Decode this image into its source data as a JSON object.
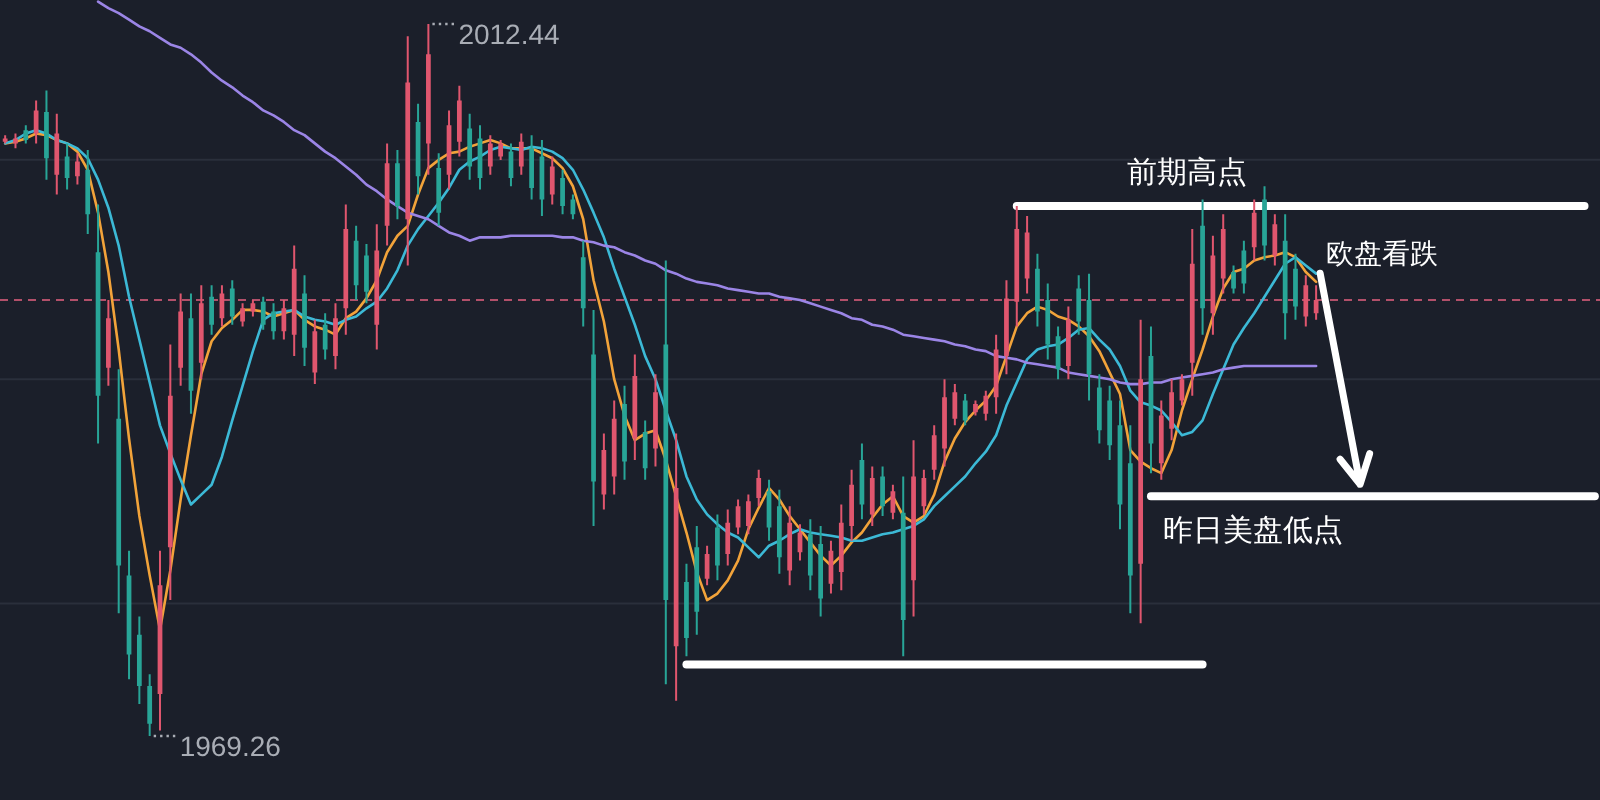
{
  "chart_data": {
    "type": "candlestick",
    "categories": [
      null,
      null,
      null,
      null,
      null,
      null,
      null,
      null,
      null,
      null,
      null,
      null,
      null,
      null,
      null,
      null,
      null,
      null,
      null,
      null,
      null,
      null,
      null,
      null,
      null,
      null,
      null,
      null,
      null,
      null,
      null,
      null,
      null,
      null,
      null,
      null,
      null,
      null,
      null,
      null,
      null,
      null,
      null,
      null,
      null,
      null,
      null,
      null,
      null,
      null,
      null,
      null,
      null,
      null,
      null,
      null,
      null,
      null,
      null,
      null,
      null,
      null,
      null,
      null,
      null,
      null,
      null,
      null,
      null,
      null,
      null,
      null,
      null,
      null,
      null,
      null,
      null,
      null,
      null,
      null,
      null,
      null,
      null,
      null,
      null,
      null,
      null,
      null,
      null,
      null,
      null,
      null,
      null,
      null,
      null,
      null,
      null,
      null,
      null,
      null,
      null,
      null,
      null,
      null,
      null,
      null,
      null,
      null,
      null,
      null,
      null,
      null,
      null,
      null,
      null,
      null,
      null,
      null,
      null,
      null,
      null,
      null,
      null,
      null,
      null,
      null,
      null,
      null,
      null,
      null,
      null,
      null,
      null,
      null,
      null,
      null,
      null,
      null,
      null,
      null,
      null,
      null,
      null,
      null,
      null,
      null,
      null,
      null,
      null,
      null,
      null,
      null,
      null,
      null,
      null
    ],
    "ohlc": [
      [
        2005.3,
        2005.7,
        2005.2,
        2005.5
      ],
      [
        2005.2,
        2005.8,
        2004.9,
        2005.5
      ],
      [
        2006.0,
        2006.3,
        2005.2,
        2005.4
      ],
      [
        2005.8,
        2007.8,
        2005.2,
        2007.2
      ],
      [
        2007.1,
        2008.4,
        2003.0,
        2004.3
      ],
      [
        2003.3,
        2007.0,
        2002.1,
        2005.8
      ],
      [
        2004.4,
        2005.2,
        2002.4,
        2003.1
      ],
      [
        2003.2,
        2004.6,
        2002.7,
        2004.1
      ],
      [
        2003.6,
        2004.8,
        1999.7,
        2000.9
      ],
      [
        1998.6,
        2001.5,
        1987.0,
        1989.9
      ],
      [
        1991.6,
        1995.7,
        1990.5,
        1994.6
      ],
      [
        1988.5,
        1991.5,
        1976.7,
        1979.6
      ],
      [
        1979.0,
        1980.5,
        1972.7,
        1974.2
      ],
      [
        1975.4,
        1976.5,
        1971.2,
        1972.3
      ],
      [
        1972.3,
        1973.0,
        1969.26,
        1970.0
      ],
      [
        1971.8,
        1980.5,
        1969.6,
        1978.4
      ],
      [
        1980.7,
        1993.0,
        1977.5,
        1989.9
      ],
      [
        1991.6,
        1996.1,
        1990.5,
        1995.0
      ],
      [
        1994.6,
        1996.1,
        1988.8,
        1990.2
      ],
      [
        1991.9,
        1996.6,
        1990.9,
        1995.5
      ],
      [
        1995.9,
        1996.6,
        1993.6,
        1994.2
      ],
      [
        1994.6,
        1996.6,
        1994.1,
        1996.1
      ],
      [
        1996.4,
        1996.9,
        1994.2,
        1994.7
      ],
      [
        1994.4,
        1995.5,
        1994.1,
        1995.2
      ],
      [
        1995.0,
        1995.7,
        1994.7,
        1995.5
      ],
      [
        1995.6,
        1995.9,
        1993.9,
        1994.2
      ],
      [
        1995.0,
        1995.5,
        1993.3,
        1993.8
      ],
      [
        1993.8,
        1995.7,
        1993.3,
        1995.2
      ],
      [
        1993.6,
        1999.0,
        1992.3,
        1997.6
      ],
      [
        1996.1,
        1997.2,
        1991.7,
        1992.8
      ],
      [
        1991.3,
        1994.5,
        1990.6,
        1993.8
      ],
      [
        1994.2,
        1994.9,
        1992.1,
        1992.7
      ],
      [
        1992.3,
        1995.5,
        1991.5,
        1994.6
      ],
      [
        1995.2,
        2001.5,
        1993.6,
        2000.0
      ],
      [
        1999.3,
        2000.2,
        1995.7,
        1996.6
      ],
      [
        1998.4,
        1999.1,
        1995.5,
        1996.2
      ],
      [
        1994.2,
        2000.3,
        1992.7,
        1998.7
      ],
      [
        2000.2,
        2005.2,
        1999.0,
        2004.0
      ],
      [
        2004.0,
        2004.8,
        2000.6,
        2001.4
      ],
      [
        2000.6,
        2011.7,
        1997.8,
        2008.9
      ],
      [
        2006.5,
        2007.6,
        2002.1,
        2003.2
      ],
      [
        2005.2,
        2012.44,
        2003.3,
        2010.6
      ],
      [
        2003.7,
        2004.6,
        2000.2,
        2001.0
      ],
      [
        2003.3,
        2007.2,
        2002.4,
        2006.3
      ],
      [
        2005.3,
        2008.7,
        2004.4,
        2007.8
      ],
      [
        2006.1,
        2007.0,
        2003.0,
        2003.8
      ],
      [
        2005.5,
        2006.3,
        2002.4,
        2003.1
      ],
      [
        2003.8,
        2005.7,
        2003.3,
        2005.2
      ],
      [
        2004.4,
        2005.4,
        2004.2,
        2005.2
      ],
      [
        2004.7,
        2005.2,
        2002.6,
        2003.1
      ],
      [
        2003.8,
        2005.8,
        2003.3,
        2005.3
      ],
      [
        2004.9,
        2005.7,
        2001.8,
        2002.5
      ],
      [
        2004.4,
        2005.4,
        2000.8,
        2001.8
      ],
      [
        2002.1,
        2004.4,
        2001.5,
        2003.8
      ],
      [
        2003.1,
        2003.6,
        2000.9,
        2001.4
      ],
      [
        2001.8,
        2002.1,
        2000.6,
        2000.9
      ],
      [
        1998.3,
        1999.3,
        1994.1,
        1995.2
      ],
      [
        1992.4,
        1995.1,
        1982.0,
        1984.7
      ],
      [
        1983.9,
        1987.6,
        1983.0,
        1986.6
      ],
      [
        1985.0,
        1989.6,
        1983.9,
        1988.5
      ],
      [
        1989.4,
        1990.5,
        1984.8,
        1985.9
      ],
      [
        1987.3,
        1992.4,
        1986.0,
        1991.1
      ],
      [
        1987.7,
        1988.4,
        1984.8,
        1985.5
      ],
      [
        1986.7,
        1991.2,
        1985.6,
        1990.1
      ],
      [
        1993.0,
        1998.1,
        1972.4,
        1977.5
      ],
      [
        1974.7,
        1987.6,
        1971.4,
        1984.3
      ],
      [
        1978.6,
        1979.7,
        1974.1,
        1975.2
      ],
      [
        1980.7,
        1982.0,
        1975.4,
        1976.8
      ],
      [
        1978.8,
        1980.8,
        1978.4,
        1980.3
      ],
      [
        1981.9,
        1982.7,
        1978.7,
        1979.6
      ],
      [
        1980.3,
        1983.0,
        1979.6,
        1982.2
      ],
      [
        1981.9,
        1983.6,
        1981.5,
        1983.2
      ],
      [
        1982.0,
        1983.9,
        1981.5,
        1983.5
      ],
      [
        1983.7,
        1985.4,
        1983.2,
        1984.9
      ],
      [
        1984.1,
        1984.8,
        1981.1,
        1981.9
      ],
      [
        1983.2,
        1984.2,
        1979.1,
        1980.1
      ],
      [
        1979.3,
        1983.2,
        1978.4,
        1982.2
      ],
      [
        1980.4,
        1982.1,
        1979.9,
        1981.6
      ],
      [
        1981.5,
        1982.4,
        1978.1,
        1979.0
      ],
      [
        1980.9,
        1982.0,
        1976.5,
        1977.6
      ],
      [
        1978.5,
        1981.1,
        1977.9,
        1980.5
      ],
      [
        1979.2,
        1983.3,
        1978.1,
        1982.2
      ],
      [
        1982.0,
        1985.4,
        1981.1,
        1984.5
      ],
      [
        1986.0,
        1987.0,
        1982.4,
        1983.3
      ],
      [
        1982.7,
        1985.6,
        1982.0,
        1984.9
      ],
      [
        1985.0,
        1985.6,
        1982.6,
        1983.2
      ],
      [
        1982.8,
        1984.5,
        1982.4,
        1984.1
      ],
      [
        1982.8,
        1985.0,
        1974.1,
        1976.3
      ],
      [
        1978.7,
        1987.2,
        1976.5,
        1985.0
      ],
      [
        1983.2,
        1985.4,
        1982.7,
        1984.9
      ],
      [
        1985.4,
        1988.1,
        1984.8,
        1987.5
      ],
      [
        1986.7,
        1990.9,
        1985.6,
        1989.8
      ],
      [
        1988.5,
        1990.6,
        1988.1,
        1990.1
      ],
      [
        1989.6,
        1990.0,
        1988.1,
        1988.4
      ],
      [
        1988.9,
        1989.6,
        1988.7,
        1989.4
      ],
      [
        1988.8,
        1990.2,
        1988.4,
        1989.9
      ],
      [
        1989.8,
        1993.6,
        1988.8,
        1992.7
      ],
      [
        1992.3,
        1996.9,
        1991.2,
        1995.8
      ],
      [
        1995.6,
        2001.4,
        1994.1,
        2000.0
      ],
      [
        1997.0,
        2000.8,
        1996.1,
        1999.8
      ],
      [
        1997.6,
        1998.5,
        1994.1,
        1995.0
      ],
      [
        1995.7,
        1996.7,
        1992.1,
        1993.0
      ],
      [
        1993.5,
        1994.1,
        1990.9,
        1991.5
      ],
      [
        1991.7,
        1995.3,
        1990.9,
        1994.5
      ],
      [
        1996.4,
        1997.2,
        1993.6,
        1994.4
      ],
      [
        1995.7,
        1997.3,
        1989.6,
        1991.2
      ],
      [
        1990.4,
        1991.2,
        1987.0,
        1987.8
      ],
      [
        1989.6,
        1990.5,
        1986.0,
        1986.9
      ],
      [
        1988.1,
        1989.6,
        1981.8,
        1983.3
      ],
      [
        1985.8,
        1988.1,
        1976.7,
        1979.0
      ],
      [
        1979.7,
        1994.5,
        1976.1,
        1990.9
      ],
      [
        1992.3,
        1994.1,
        1985.2,
        1987.0
      ],
      [
        1985.8,
        1989.6,
        1984.8,
        1988.7
      ],
      [
        1987.9,
        1990.9,
        1987.2,
        1990.1
      ],
      [
        1989.6,
        1991.2,
        1989.3,
        1990.9
      ],
      [
        1991.9,
        2000.0,
        1989.9,
        1997.9
      ],
      [
        2000.2,
        2001.8,
        1993.6,
        1995.2
      ],
      [
        1994.9,
        1999.6,
        1993.6,
        1998.4
      ],
      [
        1997.0,
        2000.9,
        1996.1,
        2000.0
      ],
      [
        1997.4,
        1997.8,
        1996.1,
        1996.4
      ],
      [
        1998.7,
        1999.3,
        1996.1,
        1996.7
      ],
      [
        1998.9,
        2001.8,
        1998.1,
        2001.0
      ],
      [
        2001.8,
        2002.6,
        1998.1,
        1999.0
      ],
      [
        1998.4,
        2000.9,
        1997.8,
        2000.3
      ],
      [
        1999.3,
        2000.9,
        1993.3,
        1994.9
      ],
      [
        1997.6,
        1998.5,
        1994.5,
        1995.3
      ],
      [
        1994.7,
        1997.2,
        1994.1,
        1996.6
      ],
      [
        1994.9,
        1996.6,
        1994.5,
        1995.7
      ],
      null,
      null,
      null,
      null,
      null,
      null,
      null,
      null,
      null,
      null,
      null,
      null,
      null,
      null,
      null,
      null,
      null,
      null,
      null,
      null,
      null,
      null,
      null,
      null,
      null,
      null,
      null
    ],
    "series": [
      {
        "type": "line",
        "color": "#f2a33a",
        "values": [
          2005.2,
          2005.3,
          2005.5,
          2005.8,
          2005.7,
          2005.4,
          2005.2,
          2004.7,
          2003.6,
          2001.0,
          1997.4,
          1992.7,
          1987.3,
          1982.6,
          1979.0,
          1975.7,
          1979.3,
          1983.6,
          1987.5,
          1991.2,
          1993.2,
          1994.0,
          1994.5,
          1995.1,
          1995.1,
          1995.0,
          1994.7,
          1994.9,
          1995.1,
          1994.5,
          1994.1,
          1993.9,
          1993.6,
          1994.6,
          1995.0,
          1995.8,
          1996.9,
          1998.6,
          1999.6,
          2000.2,
          2002.1,
          2003.7,
          2004.2,
          2004.6,
          2004.7,
          2005.0,
          2005.2,
          2005.4,
          2005.2,
          2004.9,
          2004.9,
          2004.9,
          2004.6,
          2004.3,
          2003.7,
          2002.6,
          2000.6,
          1996.9,
          1994.4,
          1990.9,
          1988.7,
          1987.2,
          1987.6,
          1987.8,
          1986.0,
          1983.8,
          1981.6,
          1979.2,
          1977.5,
          1977.9,
          1978.7,
          1979.9,
          1981.8,
          1983.1,
          1984.3,
          1983.6,
          1982.6,
          1981.8,
          1981.0,
          1980.2,
          1979.6,
          1980.2,
          1981.0,
          1981.6,
          1982.5,
          1983.3,
          1983.8,
          1982.6,
          1982.2,
          1982.6,
          1983.9,
          1985.9,
          1987.3,
          1988.3,
          1989.0,
          1989.6,
          1990.5,
          1992.3,
          1994.1,
          1994.9,
          1995.3,
          1995.1,
          1994.7,
          1994.5,
          1994.1,
          1993.5,
          1992.6,
          1991.3,
          1990.0,
          1986.6,
          1985.9,
          1985.5,
          1985.2,
          1986.6,
          1989.0,
          1990.9,
          1992.7,
          1994.7,
          1996.4,
          1997.4,
          1997.6,
          1998.1,
          1998.3,
          1998.4,
          1998.6,
          1998.3,
          1997.4,
          1996.8,
          null,
          null,
          null,
          null,
          null,
          null,
          null,
          null,
          null,
          null,
          null,
          null,
          null,
          null,
          null,
          null,
          null,
          null,
          null,
          null,
          null,
          null,
          null,
          null,
          null,
          null,
          null
        ]
      },
      {
        "type": "line",
        "color": "#3cb9d6",
        "values": [
          2005.2,
          2005.4,
          2005.8,
          2006.0,
          2005.8,
          2005.4,
          2005.2,
          2004.9,
          2004.3,
          2003.0,
          2001.3,
          1999.0,
          1995.9,
          1993.3,
          1990.7,
          1988.1,
          1986.4,
          1984.8,
          1983.3,
          1983.9,
          1984.5,
          1986.2,
          1988.4,
          1990.5,
          1992.6,
          1994.5,
          1994.9,
          1995.0,
          1995.1,
          1994.7,
          1994.5,
          1994.4,
          1994.2,
          1994.5,
          1994.7,
          1995.2,
          1995.6,
          1996.4,
          1997.5,
          1999.0,
          2000.0,
          2000.8,
          2001.6,
          2002.5,
          2003.6,
          2004.1,
          2004.4,
          2004.8,
          2005.0,
          2004.9,
          2004.8,
          2005.0,
          2004.9,
          2004.7,
          2004.3,
          2003.6,
          2002.4,
          2001.0,
          1999.5,
          1997.6,
          1995.9,
          1994.2,
          1992.3,
          1990.9,
          1989.0,
          1987.2,
          1985.0,
          1983.6,
          1982.7,
          1982.1,
          1981.6,
          1981.3,
          1980.7,
          1980.1,
          1980.8,
          1981.1,
          1981.5,
          1981.8,
          1981.6,
          1981.5,
          1981.4,
          1981.3,
          1981.1,
          1981.1,
          1981.3,
          1981.5,
          1981.6,
          1981.8,
          1982.0,
          1982.4,
          1983.2,
          1983.8,
          1984.4,
          1985.0,
          1985.8,
          1986.5,
          1987.5,
          1989.3,
          1990.7,
          1992.1,
          1992.7,
          1992.9,
          1993.0,
          1993.4,
          1993.9,
          1994.0,
          1993.3,
          1992.7,
          1991.7,
          1990.2,
          1989.5,
          1989.3,
          1989.0,
          1988.3,
          1987.5,
          1987.7,
          1988.4,
          1990.0,
          1991.5,
          1993.0,
          1994.0,
          1994.9,
          1995.9,
          1996.9,
          1997.9,
          1998.3,
          1997.8,
          1997.3,
          null,
          null,
          null,
          null,
          null,
          null,
          null,
          null,
          null,
          null,
          null,
          null,
          null,
          null,
          null,
          null,
          null,
          null,
          null,
          null,
          null,
          null,
          null,
          null,
          null,
          null,
          null
        ]
      },
      {
        "type": "line",
        "color": "#9b85e6",
        "values": [
          null,
          null,
          null,
          null,
          null,
          null,
          null,
          null,
          null,
          2013.8,
          2013.4,
          2013.1,
          2012.7,
          2012.3,
          2012.0,
          2011.6,
          2011.2,
          2011.0,
          2010.6,
          2010.1,
          2009.5,
          2009.0,
          2008.6,
          2008.1,
          2007.7,
          2007.2,
          2006.9,
          2006.5,
          2006.0,
          2005.7,
          2005.2,
          2004.7,
          2004.3,
          2003.8,
          2003.3,
          2002.7,
          2002.3,
          2001.8,
          2001.4,
          2001.0,
          2000.8,
          2000.6,
          2000.2,
          1999.8,
          1999.6,
          1999.3,
          1999.5,
          1999.5,
          1999.5,
          1999.6,
          1999.6,
          1999.6,
          1999.6,
          1999.6,
          1999.5,
          1999.5,
          1999.3,
          1999.2,
          1999.0,
          1998.9,
          1998.6,
          1998.4,
          1998.1,
          1997.9,
          1997.5,
          1997.3,
          1997.0,
          1996.8,
          1996.7,
          1996.6,
          1996.4,
          1996.3,
          1996.2,
          1996.1,
          1996.1,
          1995.9,
          1995.8,
          1995.7,
          1995.5,
          1995.3,
          1995.1,
          1994.9,
          1994.6,
          1994.5,
          1994.2,
          1994.1,
          1993.9,
          1993.6,
          1993.5,
          1993.4,
          1993.3,
          1993.2,
          1993.0,
          1992.9,
          1992.7,
          1992.6,
          1992.3,
          1992.2,
          1992.1,
          1991.9,
          1991.8,
          1991.7,
          1991.6,
          1991.3,
          1991.2,
          1991.1,
          1991.0,
          1990.9,
          1990.7,
          1990.6,
          1990.6,
          1990.7,
          1990.7,
          1990.9,
          1991.0,
          1991.1,
          1991.2,
          1991.3,
          1991.5,
          1991.6,
          1991.7,
          1991.7,
          1991.7,
          1991.7,
          1991.7,
          1991.7,
          1991.7,
          1991.7,
          null,
          null,
          null,
          null,
          null,
          null,
          null,
          null,
          null,
          null,
          null,
          null,
          null,
          null,
          null,
          null,
          null,
          null,
          null,
          null,
          null,
          null,
          null,
          null,
          null,
          null,
          null
        ]
      },
      {
        "type": "line",
        "name": "前期高点",
        "color": "#ffffff",
        "values": [
          null,
          null,
          null,
          null,
          null,
          null,
          null,
          null,
          null,
          null,
          null,
          null,
          null,
          null,
          null,
          null,
          null,
          null,
          null,
          null,
          null,
          null,
          null,
          null,
          null,
          null,
          null,
          null,
          null,
          null,
          null,
          null,
          null,
          null,
          null,
          null,
          null,
          null,
          null,
          null,
          null,
          null,
          null,
          null,
          null,
          null,
          null,
          null,
          null,
          null,
          null,
          null,
          null,
          null,
          null,
          null,
          null,
          null,
          null,
          null,
          null,
          null,
          null,
          null,
          null,
          null,
          null,
          null,
          null,
          null,
          null,
          null,
          null,
          null,
          null,
          null,
          null,
          null,
          null,
          null,
          null,
          null,
          null,
          null,
          null,
          null,
          null,
          null,
          null,
          null,
          null,
          null,
          null,
          null,
          null,
          null,
          null,
          null,
          2001.4,
          2001.4,
          2001.4,
          2001.4,
          2001.4,
          2001.4,
          2001.4,
          2001.4,
          2001.4,
          2001.4,
          2001.4,
          2001.4,
          2001.4,
          2001.4,
          2001.4,
          2001.4,
          2001.4,
          2001.4,
          2001.4,
          2001.4,
          2001.4,
          2001.4,
          2001.4,
          2001.4,
          2001.4,
          2001.4,
          2001.4,
          2001.4,
          2001.4,
          2001.4,
          2001.4,
          2001.4,
          2001.4,
          2001.4,
          2001.4,
          2001.4,
          2001.4,
          2001.4,
          2001.4,
          2001.4,
          2001.4,
          2001.4,
          2001.4,
          2001.4,
          2001.4,
          2001.4,
          2001.4,
          2001.4,
          2001.4,
          2001.4,
          2001.4,
          2001.4,
          2001.4,
          2001.4,
          2001.4,
          2001.4,
          null
        ]
      },
      {
        "type": "line",
        "color": "#ffffff",
        "values": [
          null,
          null,
          null,
          null,
          null,
          null,
          null,
          null,
          null,
          null,
          null,
          null,
          null,
          null,
          null,
          null,
          null,
          null,
          null,
          null,
          null,
          null,
          null,
          null,
          null,
          null,
          null,
          null,
          null,
          null,
          null,
          null,
          null,
          null,
          null,
          null,
          null,
          null,
          null,
          null,
          null,
          null,
          null,
          null,
          null,
          null,
          null,
          null,
          null,
          null,
          null,
          null,
          null,
          null,
          null,
          null,
          null,
          null,
          null,
          null,
          null,
          null,
          null,
          null,
          null,
          null,
          1973.6,
          1973.6,
          1973.6,
          1973.6,
          1973.6,
          1973.6,
          1973.6,
          1973.6,
          1973.6,
          1973.6,
          1973.6,
          1973.6,
          1973.6,
          1973.6,
          1973.6,
          1973.6,
          1973.6,
          1973.6,
          1973.6,
          1973.6,
          1973.6,
          1973.6,
          1973.6,
          1973.6,
          1973.6,
          1973.6,
          1973.6,
          1973.6,
          1973.6,
          1973.6,
          1973.6,
          1973.6,
          1973.6,
          1973.6,
          1973.6,
          1973.6,
          1973.6,
          1973.6,
          1973.6,
          1973.6,
          1973.6,
          1973.6,
          1973.6,
          1973.6,
          1973.6,
          1973.6,
          1973.6,
          1973.6,
          1973.6,
          1973.6,
          1973.6,
          null,
          null,
          null,
          null,
          null,
          null,
          null,
          null,
          null,
          null,
          null,
          null,
          null,
          null,
          null,
          null,
          null,
          null,
          null,
          null,
          null,
          null,
          null,
          null,
          null,
          null,
          null,
          null,
          null,
          null,
          null,
          null,
          null,
          null,
          null,
          null,
          null,
          null
        ]
      },
      {
        "type": "line",
        "name": "昨日美盘低点",
        "color": "#ffffff",
        "values": [
          null,
          null,
          null,
          null,
          null,
          null,
          null,
          null,
          null,
          null,
          null,
          null,
          null,
          null,
          null,
          null,
          null,
          null,
          null,
          null,
          null,
          null,
          null,
          null,
          null,
          null,
          null,
          null,
          null,
          null,
          null,
          null,
          null,
          null,
          null,
          null,
          null,
          null,
          null,
          null,
          null,
          null,
          null,
          null,
          null,
          null,
          null,
          null,
          null,
          null,
          null,
          null,
          null,
          null,
          null,
          null,
          null,
          null,
          null,
          null,
          null,
          null,
          null,
          null,
          null,
          null,
          null,
          null,
          null,
          null,
          null,
          null,
          null,
          null,
          null,
          null,
          null,
          null,
          null,
          null,
          null,
          null,
          null,
          null,
          null,
          null,
          null,
          null,
          null,
          null,
          null,
          null,
          null,
          null,
          null,
          null,
          null,
          null,
          null,
          null,
          null,
          null,
          null,
          null,
          null,
          null,
          null,
          null,
          null,
          null,
          null,
          1983.8,
          1983.8,
          1983.8,
          1983.8,
          1983.8,
          1983.8,
          1983.8,
          1983.8,
          1983.8,
          1983.8,
          1983.8,
          1983.8,
          1983.8,
          1983.8,
          1983.8,
          1983.8,
          1983.8,
          1983.8,
          1983.8,
          1983.8,
          1983.8,
          1983.8,
          1983.8,
          1983.8,
          1983.8,
          1983.8,
          1983.8,
          1983.8,
          1983.8,
          1983.8,
          1983.8,
          1983.8,
          1983.8,
          1983.8,
          1983.8,
          1983.8,
          1983.8,
          1983.8,
          1983.8,
          1983.8,
          1983.8,
          1983.8,
          1983.8,
          1983.8
        ]
      }
    ],
    "yticks": [
      {
        "value": 2004.2,
        "label": null
      },
      {
        "value": 1990.9,
        "label": null
      },
      {
        "value": 1977.3,
        "label": null
      }
    ],
    "grid": "y",
    "ref_lines": [
      {
        "axis": "y",
        "value": 1995.7,
        "color": "#b2506a",
        "line_style": "dashed"
      }
    ],
    "annotations": [
      "2012.44",
      "1969.26",
      "欧盘看跌"
    ]
  }
}
